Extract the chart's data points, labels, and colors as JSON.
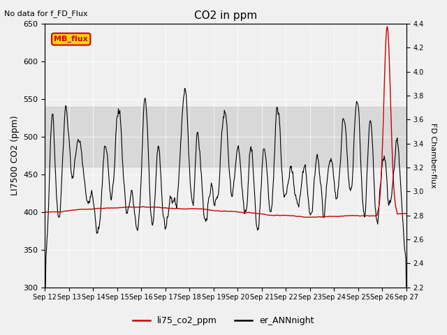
{
  "title": "CO2 in ppm",
  "top_left_text": "No data for f_FD_Flux",
  "ylabel_left": "LI7500 CO2 (ppm)",
  "ylabel_right": "FD Chamber-flux",
  "ylim_left": [
    300,
    650
  ],
  "ylim_right": [
    2.2,
    4.4
  ],
  "xlim": [
    0,
    15
  ],
  "xtick_labels": [
    "Sep 12",
    "Sep 13",
    "Sep 14",
    "Sep 15",
    "Sep 16",
    "Sep 17",
    "Sep 18",
    "Sep 19",
    "Sep 20",
    "Sep 21",
    "Sep 22",
    "Sep 23",
    "Sep 24",
    "Sep 25",
    "Sep 26",
    "Sep 27"
  ],
  "yticks_left": [
    300,
    350,
    400,
    450,
    500,
    550,
    600,
    650
  ],
  "yticks_right": [
    2.2,
    2.4,
    2.6,
    2.8,
    3.0,
    3.2,
    3.4,
    3.6,
    3.8,
    4.0,
    4.2,
    4.4
  ],
  "gray_band": [
    460,
    540
  ],
  "bg_color": "#f0f0f0",
  "line_red_color": "#cc0000",
  "line_black_color": "#000000",
  "mb_flux_face": "#ffd700",
  "mb_flux_edge": "#cc0000",
  "mb_flux_text": "#cc0000",
  "mb_flux_label": "MB_flux",
  "legend_label_red": "li75_co2_ppm",
  "legend_label_black": "er_ANNnight"
}
